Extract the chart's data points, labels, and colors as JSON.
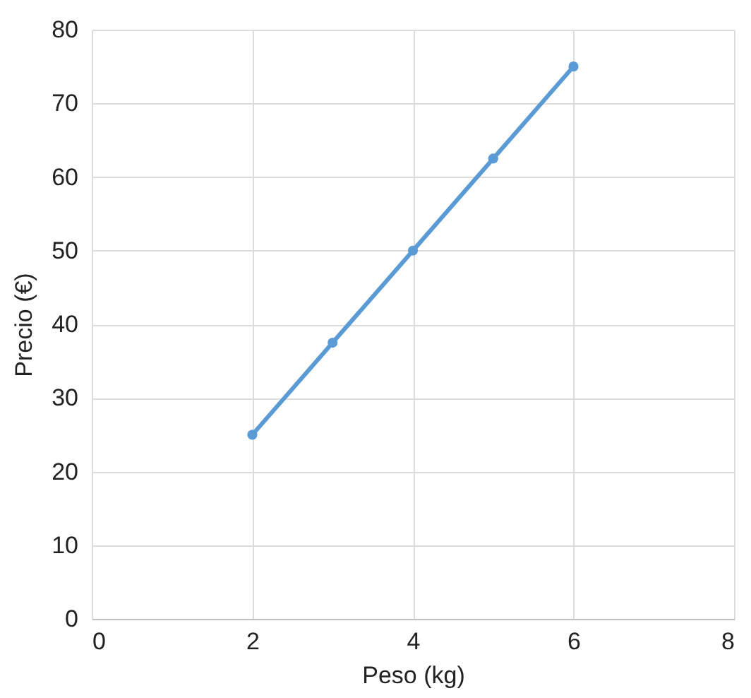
{
  "chart_data": {
    "type": "line",
    "xlabel": "Peso (kg)",
    "ylabel": "Precio (€)",
    "x": [
      2,
      3,
      4,
      5,
      6
    ],
    "series": [
      {
        "color": "#5b9bd5",
        "values": [
          25,
          37.5,
          50,
          62.5,
          75
        ]
      }
    ],
    "xlim": [
      0,
      8
    ],
    "xticks": [
      0,
      2,
      4,
      6,
      8
    ],
    "ylim": [
      0,
      80
    ],
    "yticks": [
      0,
      10,
      20,
      30,
      40,
      50,
      60,
      70,
      80
    ],
    "grid": true,
    "marker": "circle",
    "line_style": "solid"
  }
}
